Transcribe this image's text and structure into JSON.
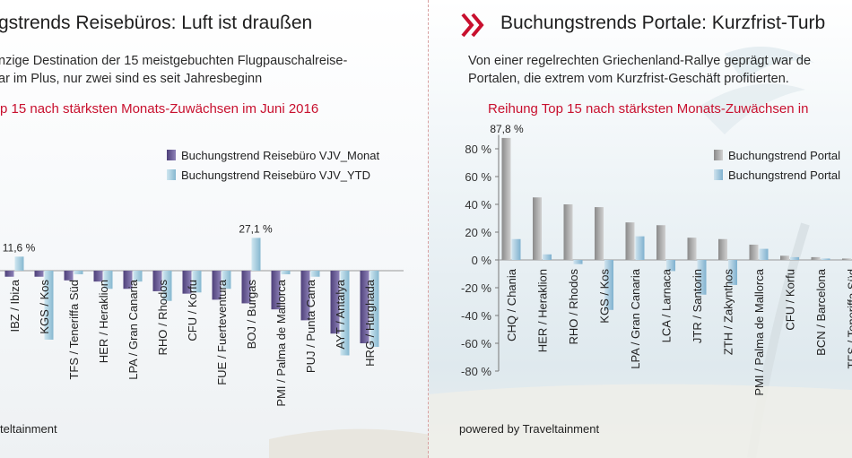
{
  "left": {
    "title": "gstrends Reisebüros: Luft ist draußen",
    "intro_line1": "nzige Destination der 15 meistgebuchten Flugpauschalreise-",
    "intro_line2": "ar im Plus, nur zwei sind es seit Jahresbeginn",
    "subtitle": "p 15 nach stärksten Monats-Zuwächsen im Juni 2016",
    "footer": "teltainment"
  },
  "right": {
    "title": "Buchungstrends Portale: Kurzfrist-Turb",
    "intro_line1": "Von einer regelrechten Griechenland-Rallye geprägt war de",
    "intro_line2": "Portalen, die extrem vom Kurzfrist-Geschäft profitierten.",
    "subtitle": "Reihung Top 15 nach stärksten Monats-Zuwächsen in",
    "footer": "powered by Traveltainment"
  },
  "colors": {
    "accent": "#c8102e",
    "left_monat": "#6a5c94",
    "left_ytd": "#a9cfe0",
    "right_monat": "#a3a3a3",
    "right_ytd": "#9cc4dc"
  },
  "chart_data": [
    {
      "type": "bar",
      "title": "p 15 nach stärksten Monats-Zuwächsen im Juni 2016",
      "legend_position": "top-right",
      "categories": [
        "IBZ / Ibiza",
        "KGS / Kos",
        "TFS / Teneriffa Süd",
        "HER / Heraklion",
        "LPA / Gran Canaria",
        "RHO / Rhodos",
        "CFU / Korfu",
        "FUE / Fuerteventura",
        "BOJ / Burgas",
        "PMI / Palma de Mallorca",
        "PUJ / Punta Cana",
        "AYT / Antalya",
        "HRG / Hurghada"
      ],
      "series": [
        {
          "name": "Buchungstrend Reisebüro VJV_Monat",
          "values": [
            -5,
            -5,
            -8,
            -9,
            -15,
            -17,
            -19,
            -24,
            -27,
            -32,
            -41,
            -52,
            -60
          ]
        },
        {
          "name": "Buchungstrend Reisebüro VJV_YTD",
          "values": [
            11.6,
            -57,
            -3,
            -15,
            -9,
            -25,
            -18,
            -15,
            27.1,
            -3,
            -5,
            -70,
            -63
          ]
        }
      ],
      "data_labels": [
        {
          "category": "IBZ / Ibiza",
          "series": "Buchungstrend Reisebüro VJV_YTD",
          "text": "11,6 %"
        },
        {
          "category": "BOJ / Burgas",
          "series": "Buchungstrend Reisebüro VJV_YTD",
          "text": "27,1 %"
        }
      ]
    },
    {
      "type": "bar",
      "title": "Reihung Top 15 nach stärksten Monats-Zuwächsen in",
      "legend_position": "top-right",
      "ylim": [
        -80,
        90
      ],
      "yticks": [
        "80 %",
        "60 %",
        "40 %",
        "20 %",
        "0 %",
        "-20 %",
        "-40 %",
        "-60 %",
        "-80 %"
      ],
      "categories": [
        "CHQ / Chania",
        "HER / Heraklion",
        "RHO / Rhodos",
        "KGS / Kos",
        "LPA / Gran Canaria",
        "LCA / Larnaca",
        "JTR / Santorin",
        "ZTH / Zakynthos",
        "PMI / Palma de Mallorca",
        "CFU / Korfu",
        "BCN / Barcelona",
        "TFS / Teneriffa Süd"
      ],
      "series": [
        {
          "name": "Buchungstrend Portal",
          "values": [
            87.8,
            45,
            40,
            38,
            27,
            25,
            16,
            15,
            11,
            3,
            2,
            1
          ]
        },
        {
          "name": "Buchungstrend Portal",
          "values": [
            15,
            4,
            -3,
            -36,
            17,
            -8,
            -25,
            -18,
            8,
            2,
            1,
            1
          ]
        }
      ],
      "data_labels": [
        {
          "category": "CHQ / Chania",
          "series": "Buchungstrend Portal",
          "text": "87,8 %"
        }
      ]
    }
  ]
}
